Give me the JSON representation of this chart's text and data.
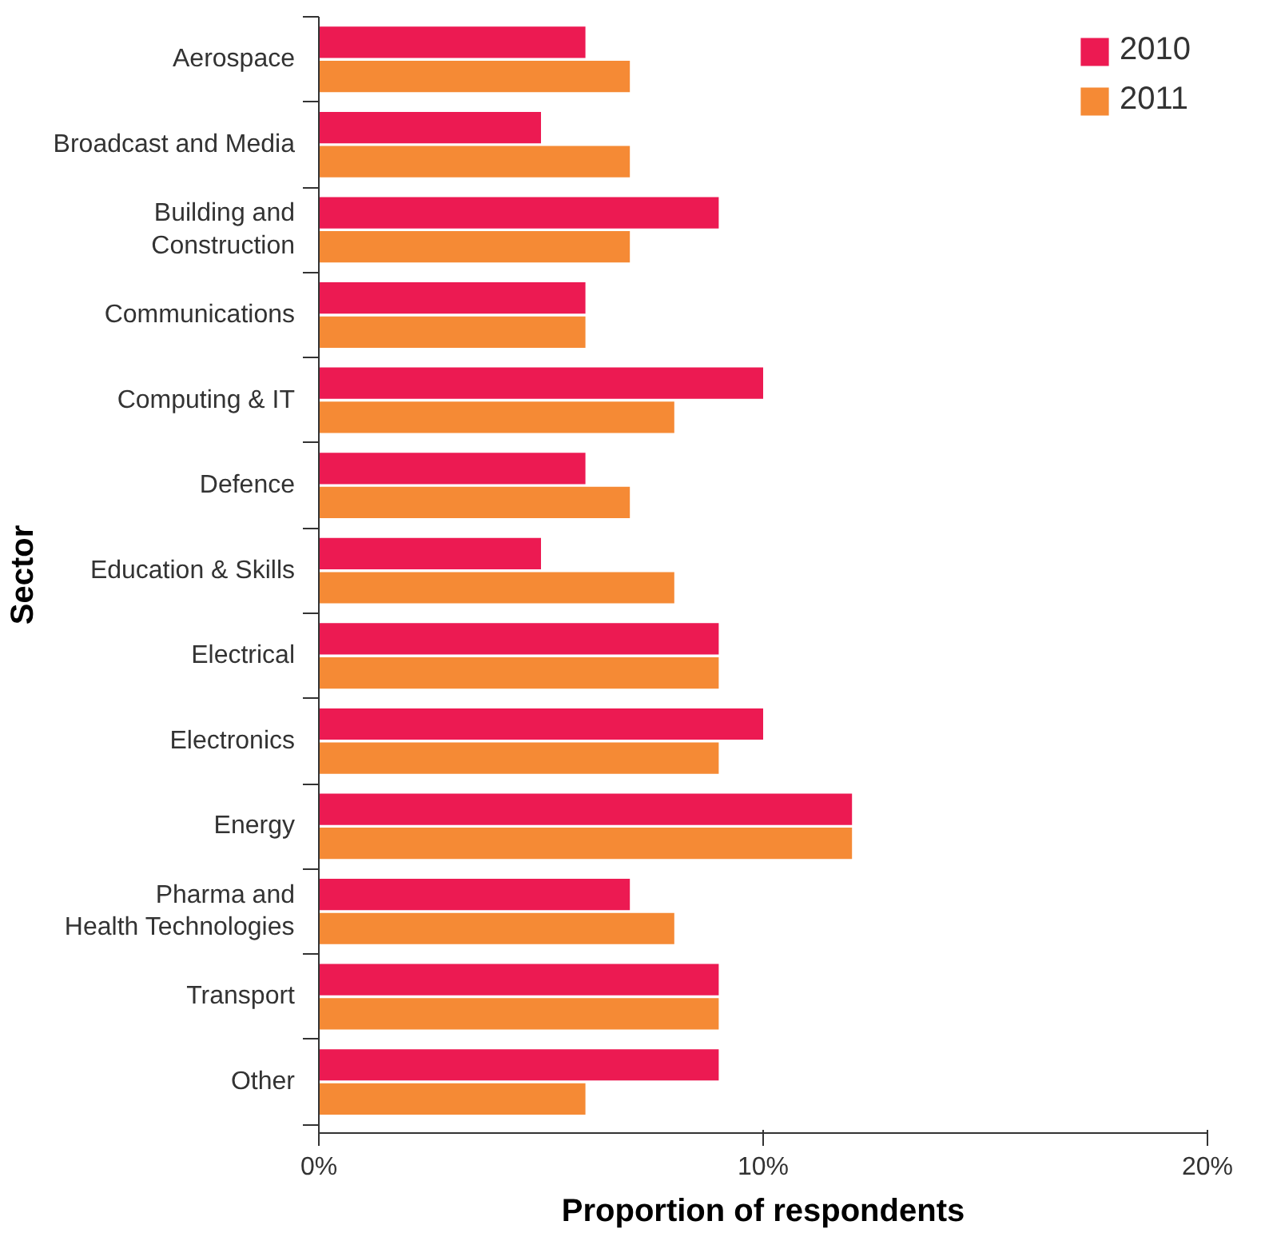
{
  "chart_data": {
    "type": "bar",
    "orientation": "horizontal",
    "xlabel": "Proportion of respondents",
    "ylabel": "Sector",
    "categories": [
      "Aerospace",
      "Broadcast and Media",
      "Building and\nConstruction",
      "Communications",
      "Computing & IT",
      "Defence",
      "Education & Skills",
      "Electrical",
      "Electronics",
      "Energy",
      "Pharma and\nHealth Technologies",
      "Transport",
      "Other"
    ],
    "series": [
      {
        "name": "2010",
        "color": "#ec1a52",
        "values": [
          6,
          5,
          9,
          6,
          10,
          6,
          5,
          9,
          10,
          12,
          7,
          9,
          9
        ]
      },
      {
        "name": "2011",
        "color": "#f58a35",
        "values": [
          7,
          7,
          7,
          6,
          8,
          7,
          8,
          9,
          9,
          12,
          8,
          9,
          6
        ]
      }
    ],
    "xlim": [
      0,
      20
    ],
    "xticks": [
      {
        "value": 0,
        "label": "0%"
      },
      {
        "value": 10,
        "label": "10%"
      },
      {
        "value": 20,
        "label": "20%"
      }
    ],
    "legend": "top right"
  }
}
